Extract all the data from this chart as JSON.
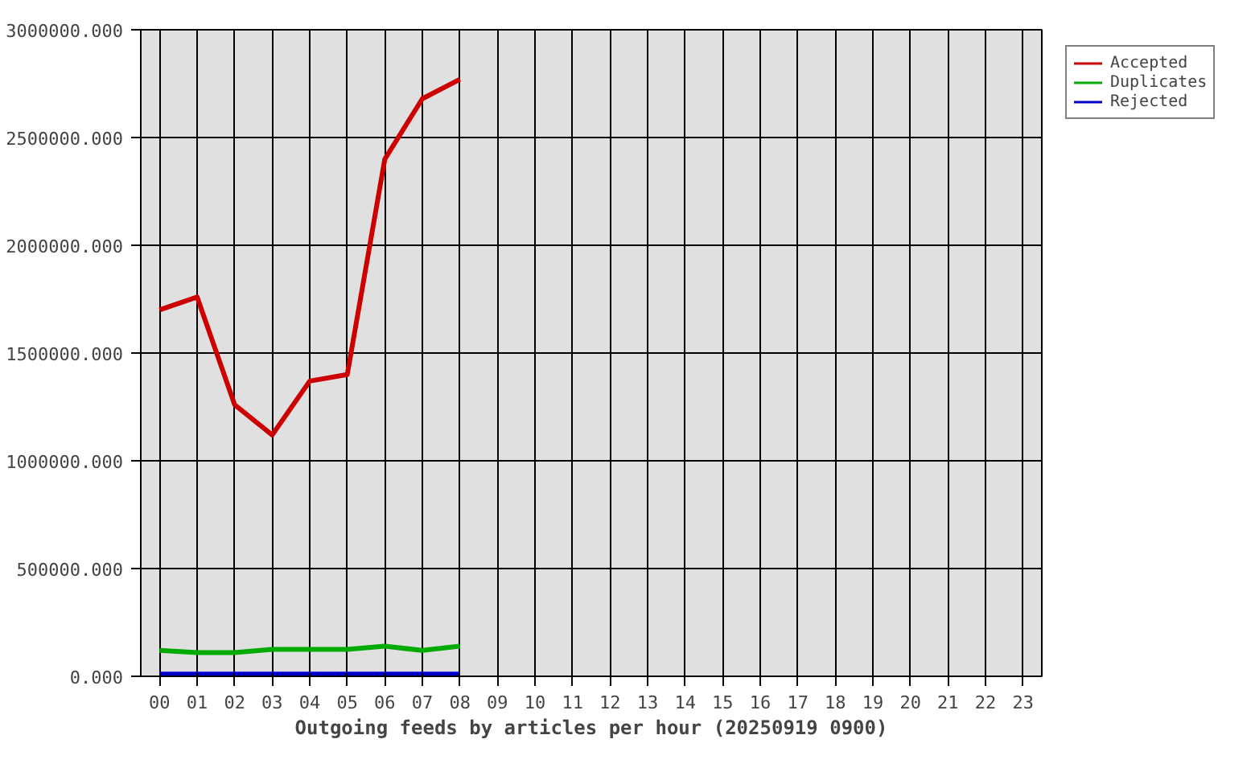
{
  "chart_data": {
    "type": "line",
    "xlabel": "Outgoing feeds by articles per hour (20250919 0900)",
    "categories": [
      "00",
      "01",
      "02",
      "03",
      "04",
      "05",
      "06",
      "07",
      "08",
      "09",
      "10",
      "11",
      "12",
      "13",
      "14",
      "15",
      "16",
      "17",
      "18",
      "19",
      "20",
      "21",
      "22",
      "23"
    ],
    "series": [
      {
        "name": "Accepted",
        "color": "#cc0000",
        "values": [
          1700000,
          1760000,
          1260000,
          1120000,
          1370000,
          1400000,
          2400000,
          2680000,
          2770000,
          null,
          null,
          null,
          null,
          null,
          null,
          null,
          null,
          null,
          null,
          null,
          null,
          null,
          null,
          null
        ]
      },
      {
        "name": "Duplicates",
        "color": "#00aa00",
        "values": [
          120000,
          110000,
          110000,
          125000,
          125000,
          125000,
          140000,
          120000,
          140000,
          null,
          null,
          null,
          null,
          null,
          null,
          null,
          null,
          null,
          null,
          null,
          null,
          null,
          null,
          null
        ]
      },
      {
        "name": "Rejected",
        "color": "#0000cc",
        "values": [
          10000,
          10000,
          10000,
          10000,
          10000,
          10000,
          10000,
          10000,
          10000,
          null,
          null,
          null,
          null,
          null,
          null,
          null,
          null,
          null,
          null,
          null,
          null,
          null,
          null,
          null
        ]
      }
    ],
    "ylim": [
      0,
      3000000
    ],
    "yticks": [
      {
        "value": 0,
        "label": "0.000"
      },
      {
        "value": 500000,
        "label": "500000.000"
      },
      {
        "value": 1000000,
        "label": "1000000.000"
      },
      {
        "value": 1500000,
        "label": "1500000.000"
      },
      {
        "value": 2000000,
        "label": "2000000.000"
      },
      {
        "value": 2500000,
        "label": "2500000.000"
      },
      {
        "value": 3000000,
        "label": "3000000.000"
      }
    ],
    "grid": true,
    "legend": "top right",
    "marker": "none",
    "line_style": "solid"
  }
}
